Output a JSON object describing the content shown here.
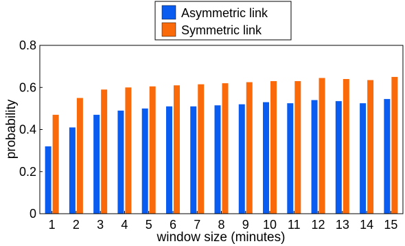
{
  "chart_data": {
    "type": "bar",
    "categories": [
      "1",
      "2",
      "3",
      "4",
      "5",
      "6",
      "7",
      "8",
      "9",
      "10",
      "11",
      "12",
      "13",
      "14",
      "15"
    ],
    "series": [
      {
        "name": "Asymmetric link",
        "color": "#0a5cf0",
        "values": [
          0.32,
          0.41,
          0.47,
          0.49,
          0.5,
          0.51,
          0.51,
          0.515,
          0.52,
          0.53,
          0.525,
          0.54,
          0.535,
          0.525,
          0.545
        ]
      },
      {
        "name": "Symmetric link",
        "color": "#fa6a0a",
        "values": [
          0.47,
          0.55,
          0.59,
          0.6,
          0.605,
          0.61,
          0.615,
          0.62,
          0.625,
          0.63,
          0.63,
          0.645,
          0.64,
          0.635,
          0.65
        ]
      }
    ],
    "title": "",
    "xlabel": "window size (minutes)",
    "ylabel": "probability",
    "ylim": [
      0,
      0.8
    ],
    "yticks": [
      "0",
      "0.2",
      "0.4",
      "0.6",
      "0.8"
    ],
    "grid": false,
    "legend_position": "top-center"
  }
}
